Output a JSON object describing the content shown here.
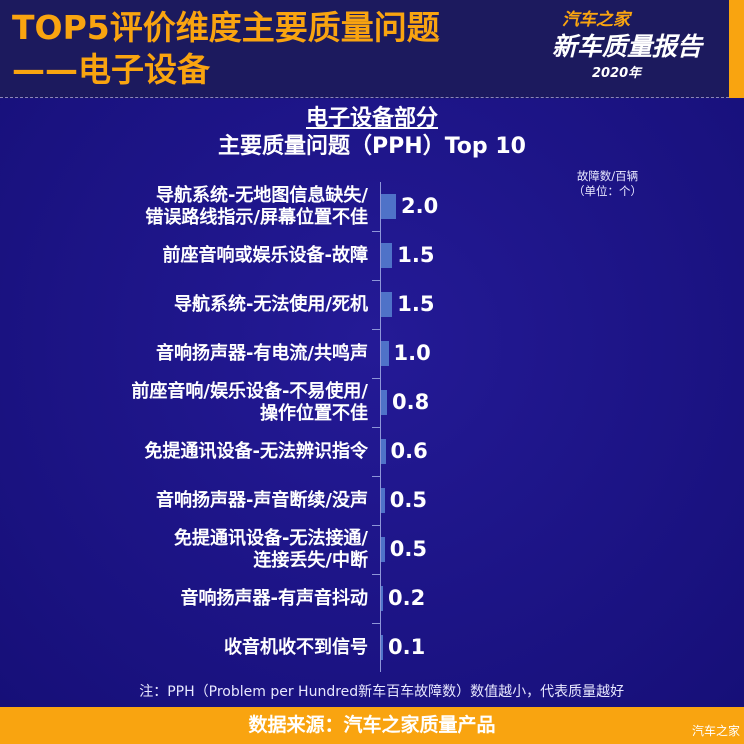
{
  "header": {
    "title_line1": "TOP5评价维度主要质量问题",
    "title_line2": "——电子设备",
    "logo": {
      "brand": "汽车之家",
      "name": "新车质量报告",
      "year": "2020年"
    }
  },
  "colors": {
    "accent": "#f9a410",
    "bar": "#4f72c8",
    "background": "#1a1380"
  },
  "chart_data": {
    "type": "bar",
    "orientation": "horizontal",
    "title": "电子设备部分",
    "subtitle": "主要质量问题（PPH）Top 10",
    "unit_label": "故障数/百辆",
    "unit_sub": "（单位：个）",
    "categories": [
      [
        "导航系统-无地图信息缺失/",
        "错误路线指示/屏幕位置不佳"
      ],
      [
        "前座音响或娱乐设备-故障"
      ],
      [
        "导航系统-无法使用/死机"
      ],
      [
        "音响扬声器-有电流/共鸣声"
      ],
      [
        "前座音响/娱乐设备-不易使用/",
        "操作位置不佳"
      ],
      [
        "免提通讯设备-无法辨识指令"
      ],
      [
        "音响扬声器-声音断续/没声"
      ],
      [
        "免提通讯设备-无法接通/",
        "连接丢失/中断"
      ],
      [
        "音响扬声器-有声音抖动"
      ],
      [
        "收音机收不到信号"
      ]
    ],
    "values": [
      2.0,
      1.5,
      1.5,
      1.0,
      0.8,
      0.6,
      0.5,
      0.5,
      0.2,
      0.1
    ],
    "value_labels": [
      "2.0",
      "1.5",
      "1.5",
      "1.0",
      "0.8",
      "0.6",
      "0.5",
      "0.5",
      "0.2",
      "0.1"
    ]
  },
  "note": "注：PPH（Problem per Hundred新车百车故障数）数值越小，代表质量越好",
  "footer": {
    "source": "数据来源：汽车之家质量产品",
    "watermark": "汽车之家"
  }
}
